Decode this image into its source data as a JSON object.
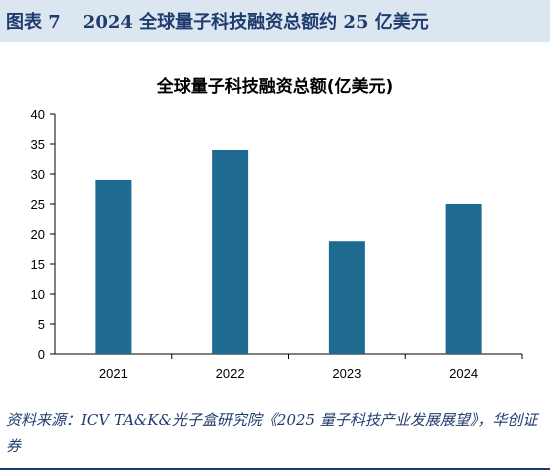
{
  "figure": {
    "label": "图表 7",
    "heading": "2024 全球量子科技融资总额约 25 亿美元"
  },
  "source_note": "资料来源：ICV TA&K&光子盒研究院《2025 量子科技产业发展展望》，华创证券",
  "colors": {
    "bar": "#1f6a91",
    "header_bg": "#dbe6f1",
    "heading_text": "#1f3c6e"
  },
  "chart_data": {
    "type": "bar",
    "title": "全球量子科技融资总额(亿美元)",
    "categories": [
      "2021",
      "2022",
      "2023",
      "2024"
    ],
    "values": [
      29,
      34,
      18.8,
      25
    ],
    "ylim": [
      0,
      40
    ],
    "yticks": [
      0,
      5,
      10,
      15,
      20,
      25,
      30,
      35,
      40
    ],
    "grid": false,
    "legend": "none"
  }
}
